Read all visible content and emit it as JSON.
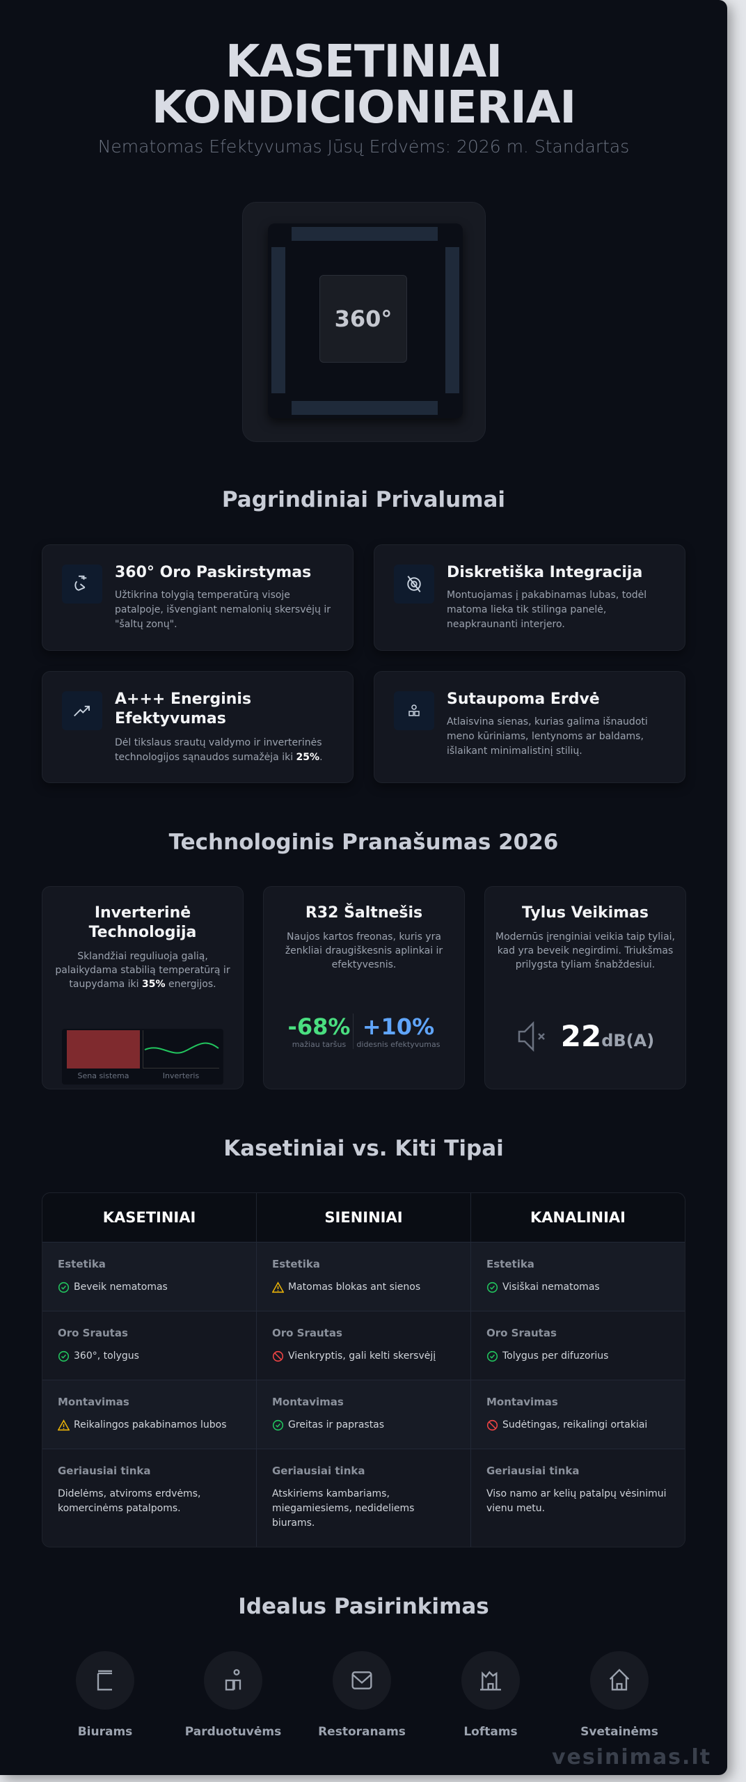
{
  "header": {
    "title_line1": "KASETINIAI",
    "title_line2": "KONDICIONIERIAI",
    "subtitle": "Nematomas Efektyvumas Jūsų Erdvėms: 2026 m. Standartas"
  },
  "hero": {
    "label": "360°"
  },
  "benefits": {
    "heading": "Pagrindiniai Privalumai",
    "items": [
      {
        "icon": "airflow-icon",
        "title": "360° Oro Paskirstymas",
        "desc": "Užtikrina tolygią temperatūrą visoje patalpoje, išvengiant nemalonių skersvėjų ir \"šaltų zonų\"."
      },
      {
        "icon": "eye-off-icon",
        "title": "Diskretiška Integracija",
        "desc": "Montuojamas į pakabinamas lubas, todėl matoma lieka tik stilinga panelė, neapkraunanti interjero."
      },
      {
        "icon": "trend-icon",
        "title": "A+++ Energinis Efektyvumas",
        "desc": "Dėl tikslaus srautų valdymo ir inverterinės technologijos sąnaudos sumažėja iki ",
        "desc_bold": "25%",
        "desc_end": "."
      },
      {
        "icon": "space-icon",
        "title": "Sutaupoma Erdvė",
        "desc": "Atlaisvina sienas, kurias galima išnaudoti meno kūriniams, lentynoms ar baldams, išlaikant minimalistinį stilių."
      }
    ]
  },
  "tech": {
    "heading": "Technologinis Pranašumas 2026",
    "inverter": {
      "title": "Inverterinė Technologija",
      "desc": "Sklandžiai reguliuoja galią, palaikydama stabilią temperatūrą ir taupydama iki ",
      "desc_bold": "35%",
      "desc_end": " energijos.",
      "old_label": "Sena sistema",
      "new_label": "Inverteris"
    },
    "r32": {
      "title": "R32 Šaltnešis",
      "desc": "Naujos kartos freonas, kuris yra ženkliai draugiškesnis aplinkai ir efektyvesnis.",
      "stat1": "-68%",
      "stat1_label": "mažiau taršus",
      "stat2": "+10%",
      "stat2_label": "didesnis efektyvumas"
    },
    "quiet": {
      "title": "Tylus Veikimas",
      "desc": "Modernūs įrenginiai veikia taip tyliai, kad yra beveik negirdimi. Triukšmas prilygsta tyliam šnabždesiui.",
      "value": "22",
      "unit": "dB(A)"
    }
  },
  "comparison": {
    "heading": "Kasetiniai vs. Kiti Tipai",
    "columns": [
      "KASETINIAI",
      "SIENINIAI",
      "KANALINIAI"
    ],
    "rows": [
      {
        "label": "Estetika",
        "cells": [
          {
            "status": "ok",
            "text": "Beveik nematomas"
          },
          {
            "status": "warn",
            "text": "Matomas blokas ant sienos"
          },
          {
            "status": "ok",
            "text": "Visiškai nematomas"
          }
        ]
      },
      {
        "label": "Oro Srautas",
        "cells": [
          {
            "status": "ok",
            "text": "360°, tolygus"
          },
          {
            "status": "bad",
            "text": "Vienkryptis, gali kelti skersvėjį"
          },
          {
            "status": "ok",
            "text": "Tolygus per difuzorius"
          }
        ]
      },
      {
        "label": "Montavimas",
        "cells": [
          {
            "status": "warn",
            "text": "Reikalingos pakabinamos lubos"
          },
          {
            "status": "ok",
            "text": "Greitas ir paprastas"
          },
          {
            "status": "bad",
            "text": "Sudėtingas, reikalingi ortakiai"
          }
        ]
      },
      {
        "label": "Geriausiai tinka",
        "cells": [
          {
            "text": "Didelėms, atviroms erdvėms, komercinėms patalpoms."
          },
          {
            "text": "Atskiriems kambariams, miegamiesiems, nedideliems biurams."
          },
          {
            "text": "Viso namo ar kelių patalpų vėsinimui vienu metu."
          }
        ]
      }
    ]
  },
  "ideal": {
    "heading": "Idealus Pasirinkimas",
    "items": [
      {
        "icon": "office-icon",
        "label": "Biurams"
      },
      {
        "icon": "shop-icon",
        "label": "Parduotuvėms"
      },
      {
        "icon": "restaurant-icon",
        "label": "Restoranams"
      },
      {
        "icon": "loft-icon",
        "label": "Loftams"
      },
      {
        "icon": "home-icon",
        "label": "Svetainėms"
      }
    ]
  },
  "watermark": "vesinimas.lt",
  "colors": {
    "ok": "#22c55e",
    "warn": "#eab308",
    "bad": "#ef4444",
    "green_stat": "#4ade80",
    "blue_stat": "#60a5fa"
  }
}
